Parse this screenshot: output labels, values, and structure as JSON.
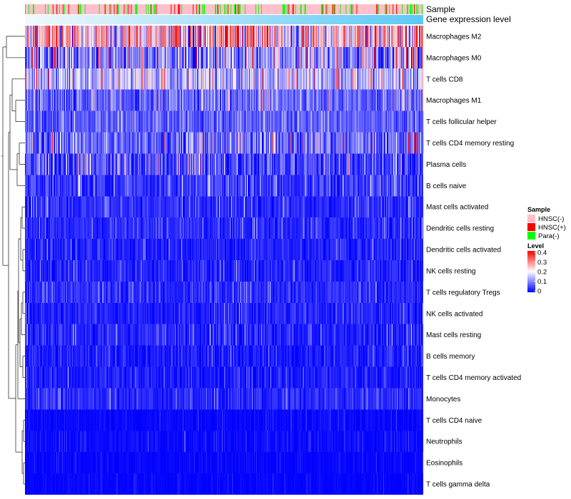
{
  "chart_data": {
    "type": "heatmap",
    "title": "",
    "annotations": {
      "sample_label": "Sample",
      "gene_label": "Gene expression level"
    },
    "rows": [
      {
        "label": "Macrophages M2",
        "mean": 0.22,
        "spread": 0.17
      },
      {
        "label": "Macrophages M0",
        "mean": 0.11,
        "spread": 0.14
      },
      {
        "label": "T cells CD8",
        "mean": 0.14,
        "spread": 0.1
      },
      {
        "label": "Macrophages M1",
        "mean": 0.08,
        "spread": 0.07
      },
      {
        "label": "T cells follicular helper",
        "mean": 0.07,
        "spread": 0.05
      },
      {
        "label": "T cells CD4 memory resting",
        "mean": 0.08,
        "spread": 0.09
      },
      {
        "label": "Plasma cells",
        "mean": 0.05,
        "spread": 0.08
      },
      {
        "label": "B cells naive",
        "mean": 0.04,
        "spread": 0.05
      },
      {
        "label": "Mast cells activated",
        "mean": 0.03,
        "spread": 0.04
      },
      {
        "label": "Dendritic cells resting",
        "mean": 0.03,
        "spread": 0.04
      },
      {
        "label": "Dendritic cells activated",
        "mean": 0.025,
        "spread": 0.035
      },
      {
        "label": "NK cells resting",
        "mean": 0.025,
        "spread": 0.035
      },
      {
        "label": "T cells regulatory  Tregs",
        "mean": 0.03,
        "spread": 0.035
      },
      {
        "label": "NK cells activated",
        "mean": 0.025,
        "spread": 0.035
      },
      {
        "label": "Mast cells resting",
        "mean": 0.025,
        "spread": 0.04
      },
      {
        "label": "B cells memory",
        "mean": 0.02,
        "spread": 0.03
      },
      {
        "label": "T cells CD4 memory activated",
        "mean": 0.02,
        "spread": 0.035
      },
      {
        "label": "Monocytes",
        "mean": 0.03,
        "spread": 0.03
      },
      {
        "label": "T cells CD4 naive",
        "mean": 0.005,
        "spread": 0.015
      },
      {
        "label": "Neutrophils",
        "mean": 0.008,
        "spread": 0.018
      },
      {
        "label": "Eosinophils",
        "mean": 0.004,
        "spread": 0.012
      },
      {
        "label": "T cells gamma delta",
        "mean": 0.003,
        "spread": 0.012
      }
    ],
    "n_samples": 560,
    "sample_groups": [
      {
        "name": "HNSC(-)",
        "color": "#ffc0cb",
        "share": 0.79
      },
      {
        "name": "HNSC(+)",
        "color": "#ff0000",
        "share": 0.07
      },
      {
        "name": "Para(-)",
        "color": "#00ff00",
        "share": 0.14
      }
    ],
    "gene_expression_gradient": [
      "#f2f9fd",
      "#5bc8f5"
    ],
    "color_scale": {
      "min": 0,
      "max": 0.4,
      "stops": [
        {
          "value": 0,
          "color": "#0000ff"
        },
        {
          "value": 0.2,
          "color": "#ffffff"
        },
        {
          "value": 0.4,
          "color": "#ff0000"
        }
      ]
    },
    "legend": {
      "sample_title": "Sample",
      "level_title": "Level",
      "level_ticks": [
        "0.4",
        "0.3",
        "0.2",
        "0.1",
        "0"
      ],
      "level_tick_values": [
        0.4,
        0.3,
        0.2,
        0.1,
        0
      ]
    },
    "dendrogram": "left"
  }
}
